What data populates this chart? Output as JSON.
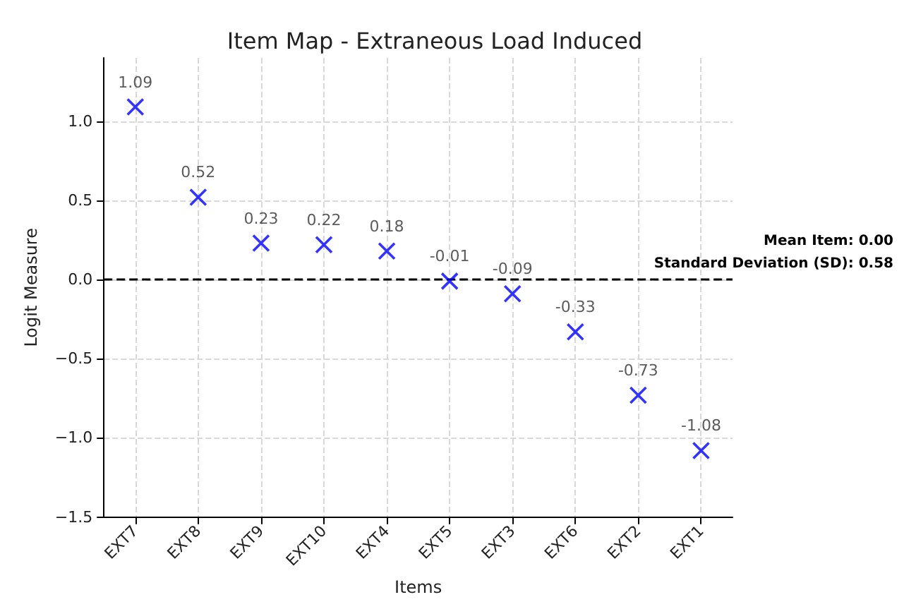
{
  "chart_data": {
    "type": "scatter",
    "title": "Item Map - Extraneous Load Induced",
    "xlabel": "Items",
    "ylabel": "Logit Measure",
    "categories": [
      "EXT7",
      "EXT8",
      "EXT9",
      "EXT10",
      "EXT4",
      "EXT5",
      "EXT3",
      "EXT6",
      "EXT2",
      "EXT1"
    ],
    "series": [
      {
        "color": "#0000ff",
        "values": [
          1.09,
          0.52,
          0.23,
          0.22,
          0.18,
          -0.01,
          -0.09,
          -0.33,
          -0.73,
          -1.08
        ]
      }
    ],
    "data_labels": true,
    "marker": "cross",
    "grid": true,
    "ylim": [
      -1.5,
      1.4
    ],
    "yticks": [
      {
        "value": -1.5,
        "label": "−1.5"
      },
      {
        "value": -1,
        "label": "−1.0"
      },
      {
        "value": -0.5,
        "label": "−0.5"
      },
      {
        "value": 0,
        "label": "0.0"
      },
      {
        "value": 0.5,
        "label": "0.5"
      },
      {
        "value": 1,
        "label": "1.0"
      }
    ],
    "ref_lines": [
      {
        "axis": "y",
        "value": 0,
        "label": null,
        "color": "#000000",
        "line_style": "dashed"
      }
    ],
    "annotations": [
      "Mean Item: 0.00",
      "Standard Deviation (SD): 0.58"
    ]
  }
}
